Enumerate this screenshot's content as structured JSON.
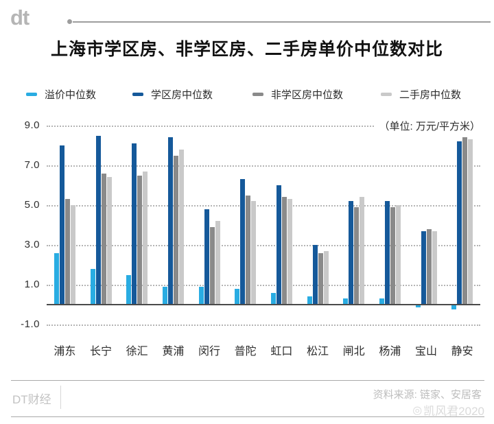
{
  "header": {
    "logo": "dt",
    "title": "上海市学区房、非学区房、二手房单价中位数对比"
  },
  "legend": [
    {
      "label": "溢价中位数",
      "color": "#29ACE2"
    },
    {
      "label": "学区房中位数",
      "color": "#15599A"
    },
    {
      "label": "非学区房中位数",
      "color": "#8A8A8A"
    },
    {
      "label": "二手房中位数",
      "color": "#C9C9C9"
    }
  ],
  "unit_label": "（单位: 万元/平方米）",
  "chart_data": {
    "type": "bar",
    "title": "上海市学区房、非学区房、二手房单价中位数对比",
    "ylabel": "万元/平方米",
    "categories": [
      "浦东",
      "长宁",
      "徐汇",
      "黄浦",
      "闵行",
      "普陀",
      "虹口",
      "松江",
      "闸北",
      "杨浦",
      "宝山",
      "静安"
    ],
    "series": [
      {
        "name": "溢价中位数",
        "color": "#29ACE2",
        "values": [
          2.6,
          1.8,
          1.5,
          0.9,
          0.9,
          0.8,
          0.6,
          0.4,
          0.3,
          0.3,
          -0.1,
          -0.2
        ]
      },
      {
        "name": "学区房中位数",
        "color": "#15599A",
        "values": [
          8.0,
          8.5,
          8.1,
          8.4,
          4.8,
          6.3,
          6.0,
          3.0,
          5.2,
          5.2,
          3.7,
          8.2
        ]
      },
      {
        "name": "非学区房中位数",
        "color": "#8A8A8A",
        "values": [
          5.3,
          6.6,
          6.5,
          7.5,
          3.9,
          5.5,
          5.4,
          2.6,
          4.9,
          4.9,
          3.8,
          8.4
        ]
      },
      {
        "name": "二手房中位数",
        "color": "#C9C9C9",
        "values": [
          5.0,
          6.4,
          6.7,
          7.8,
          4.2,
          5.2,
          5.3,
          2.7,
          5.4,
          5.0,
          3.7,
          8.3
        ]
      }
    ],
    "yticks": [
      9.0,
      7.0,
      5.0,
      3.0,
      1.0,
      -1.0
    ],
    "ylim": [
      -1.5,
      9.5
    ],
    "grid": "dotted-horizontal",
    "legend_position": "top"
  },
  "footer": {
    "brand": "DT财经",
    "source": "资料来源: 链家、安居客",
    "watermark": "凯风君2020"
  }
}
